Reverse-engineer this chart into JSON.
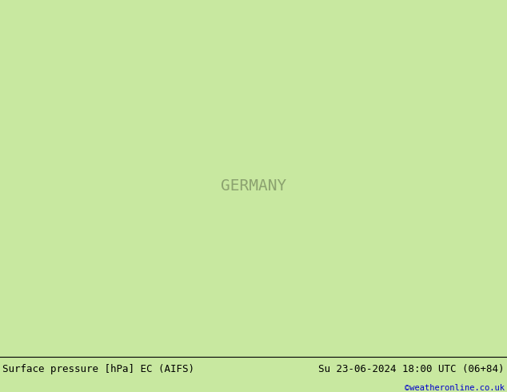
{
  "title_left": "Surface pressure [hPa] EC (AIFS)",
  "title_right": "Su 23-06-2024 18:00 UTC (06+84)",
  "copyright": "©weatheronline.co.uk",
  "bg_land": "#c8e8a0",
  "bg_sea": "#d8d8d8",
  "bg_sea_light": "#cccccc",
  "contour_red": "#ff0000",
  "contour_blue": "#0000ee",
  "contour_black": "#000000",
  "border_germany": "#000000",
  "border_states": "#000000",
  "border_countries": "#888888",
  "bottom_bg": "#ffffff",
  "bottom_text": "#000000",
  "copyright_color": "#0000cc",
  "lon_min": 5.5,
  "lon_max": 15.5,
  "lat_min": 46.5,
  "lat_max": 55.5,
  "font_size_labels": 7,
  "font_size_bottom": 9,
  "font_size_copyright": 7.5
}
